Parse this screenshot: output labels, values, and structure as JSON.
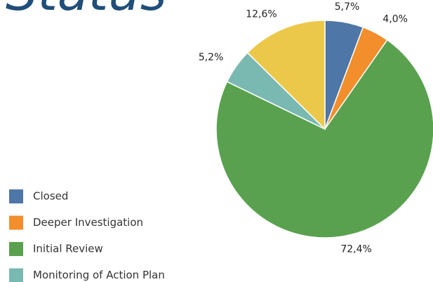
{
  "chart_data": {
    "type": "pie",
    "title": "Status",
    "categories": [
      "Closed",
      "Deeper Investigation",
      "Initial Review",
      "Monitoring of Action Plan",
      null
    ],
    "values": [
      5.7,
      4.0,
      72.4,
      5.2,
      12.6
    ],
    "value_labels": [
      "5,7%",
      "4,0%",
      "72,4%",
      "5,2%",
      "12,6%"
    ],
    "colors": [
      "#4e76a6",
      "#f28e2b",
      "#59a14f",
      "#7ab8b2",
      "#ecc84a"
    ],
    "legend": "bottom-left"
  }
}
